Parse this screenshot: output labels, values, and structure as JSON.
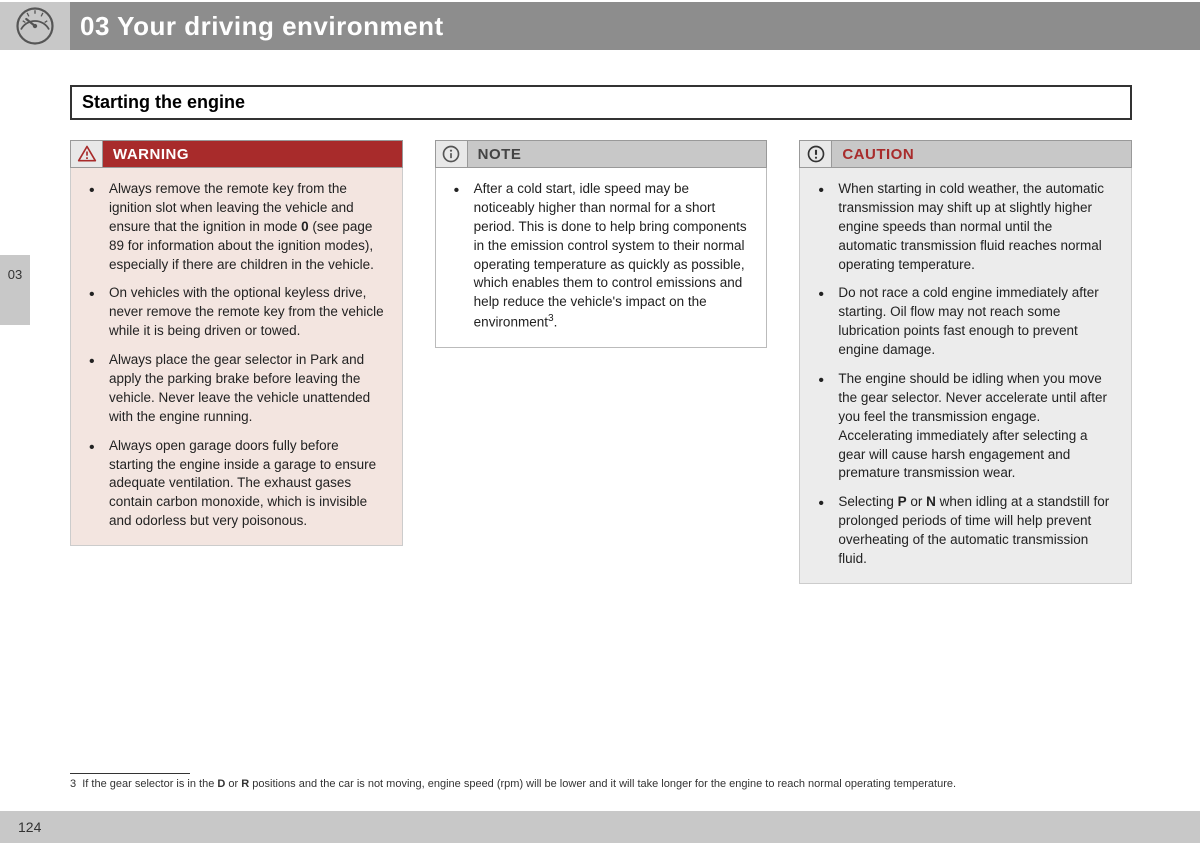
{
  "header": {
    "chapter_title": "03 Your driving environment",
    "icon": "gauge-icon"
  },
  "side_tab": {
    "label": "03"
  },
  "section_title": "Starting the engine",
  "columns": {
    "warning": {
      "label": "WARNING",
      "header_bg": "#a82b2b",
      "body_bg": "#f3e5e0",
      "label_color": "#ffffff",
      "icon": "warning-triangle-icon",
      "items": [
        "Always remove the remote key from the ignition slot when leaving the vehicle and ensure that the ignition in mode <b>0</b> (see page 89 for information about the ignition modes), especially if there are children in the vehicle.",
        "On vehicles with the optional keyless drive, never remove the remote key from the vehicle while it is being driven or towed.",
        "Always place the gear selector in Park and apply the parking brake before leaving the vehicle. Never leave the vehicle unattended with the engine running.",
        "Always open garage doors fully before starting the engine inside a garage to ensure adequate ventilation. The exhaust gases contain carbon monoxide, which is invisible and odorless but very poisonous."
      ]
    },
    "note": {
      "label": "NOTE",
      "header_bg": "#c8c8c8",
      "body_bg": "#ffffff",
      "label_color": "#444444",
      "icon": "info-icon",
      "items": [
        "After a cold start, idle speed may be noticeably higher than normal for a short period. This is done to help bring components in the emission control system to their normal operating temperature as quickly as possible, which enables them to control emissions and help reduce the vehicle's impact on the environment<sup>3</sup>."
      ]
    },
    "caution": {
      "label": "CAUTION",
      "header_bg": "#c8c8c8",
      "body_bg": "#ececec",
      "label_color": "#a82b2b",
      "icon": "exclamation-circle-icon",
      "items": [
        "When starting in cold weather, the automatic transmission may shift up at slightly higher engine speeds than normal until the automatic transmission fluid reaches normal operating temperature.",
        "Do not race a cold engine immediately after starting. Oil flow may not reach some lubrication points fast enough to prevent engine damage.",
        "The engine should be idling when you move the gear selector. Never accelerate until after you feel the transmission engage. Accelerating immediately after selecting a gear will cause harsh engagement and premature transmission wear.",
        "Selecting <b>P</b> or <b>N</b> when idling at a standstill for prolonged periods of time will help prevent overheating of the automatic transmission fluid."
      ]
    }
  },
  "footnote": {
    "marker": "3",
    "text": "If the gear selector is in the <b>D</b> or <b>R</b> positions and the car is not moving, engine speed (rpm) will be lower and it will take longer for the engine to reach normal operating temperature."
  },
  "footer": {
    "page_number": "124"
  },
  "colors": {
    "header_bar": "#8d8d8d",
    "sidebar_grey": "#c8c8c8",
    "text": "#222222"
  }
}
